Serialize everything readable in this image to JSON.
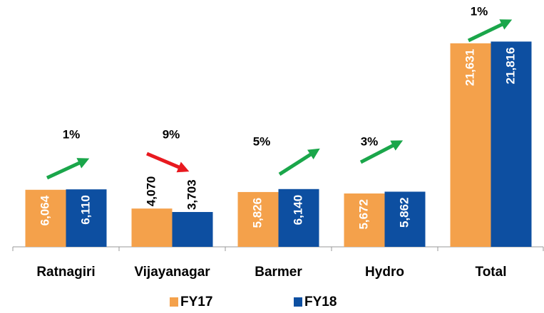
{
  "chart_data": {
    "type": "bar",
    "categories": [
      "Ratnagiri",
      "Vijayanagar",
      "Barmer",
      "Hydro",
      "Total"
    ],
    "series": [
      {
        "name": "FY17",
        "color": "#f4a14b",
        "values": [
          6064,
          4070,
          5826,
          5672,
          21631
        ],
        "value_labels": [
          "6,064",
          "4,070",
          "5,826",
          "5,672",
          "21,631"
        ]
      },
      {
        "name": "FY18",
        "color": "#0d4fa1",
        "values": [
          6110,
          3703,
          6140,
          5862,
          21816
        ],
        "value_labels": [
          "6,110",
          "3,703",
          "6,140",
          "5,862",
          "21,816"
        ]
      }
    ],
    "ylim": [
      0,
      22000
    ],
    "annotations": [
      {
        "text": "1%",
        "direction": "up",
        "color": "#1aa64a"
      },
      {
        "text": "9%",
        "direction": "down",
        "color": "#e8191f"
      },
      {
        "text": "5%",
        "direction": "up",
        "color": "#1aa64a"
      },
      {
        "text": "3%",
        "direction": "up",
        "color": "#1aa64a"
      },
      {
        "text": "1%",
        "direction": "up",
        "color": "#1aa64a"
      }
    ],
    "legend": "bottom"
  }
}
